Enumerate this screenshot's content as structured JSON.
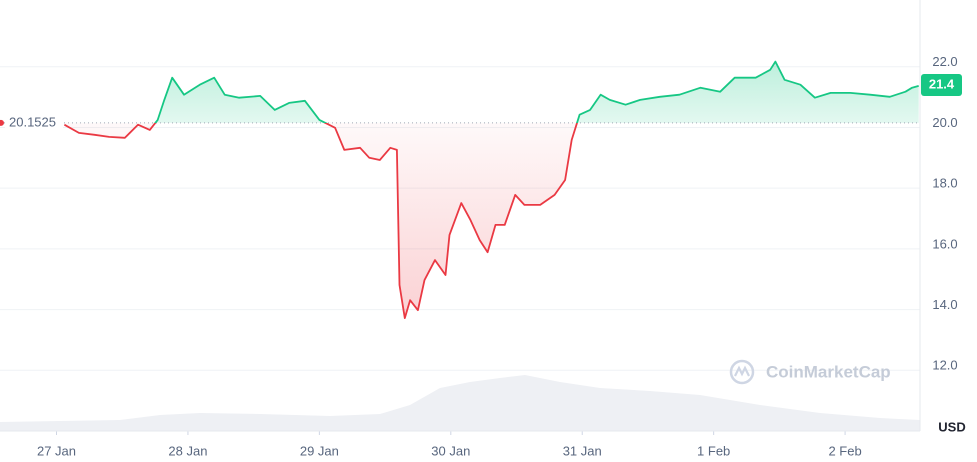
{
  "chart_data": {
    "type": "line",
    "baseline": 20.1525,
    "current_price": 21.4,
    "unit": "USD",
    "watermark": "CoinMarketCap",
    "xlim": [
      -0.43,
      6.57
    ],
    "ylim": [
      10,
      24.2
    ],
    "xticks": [
      {
        "value": 0,
        "label": "27 Jan"
      },
      {
        "value": 1,
        "label": "28 Jan"
      },
      {
        "value": 2,
        "label": "29 Jan"
      },
      {
        "value": 3,
        "label": "30 Jan"
      },
      {
        "value": 4,
        "label": "31 Jan"
      },
      {
        "value": 5,
        "label": "1 Feb"
      },
      {
        "value": 6,
        "label": "2 Feb"
      }
    ],
    "yticks": [
      {
        "value": 12,
        "label": "12.0"
      },
      {
        "value": 14,
        "label": "14.0"
      },
      {
        "value": 16,
        "label": "16.0"
      },
      {
        "value": 18,
        "label": "18.0"
      },
      {
        "value": 20,
        "label": "20.0"
      },
      {
        "value": 22,
        "label": "22.0"
      }
    ],
    "grid": true,
    "up_color": "#16c784",
    "down_color": "#ea3943",
    "x": [
      0.06,
      0.17,
      0.29,
      0.4,
      0.52,
      0.62,
      0.71,
      0.77,
      0.82,
      0.88,
      0.97,
      1.09,
      1.2,
      1.28,
      1.39,
      1.55,
      1.66,
      1.77,
      1.89,
      2.0,
      2.12,
      2.19,
      2.31,
      2.38,
      2.46,
      2.54,
      2.59,
      2.61,
      2.65,
      2.69,
      2.75,
      2.8,
      2.88,
      2.96,
      2.99,
      3.08,
      3.15,
      3.22,
      3.28,
      3.34,
      3.41,
      3.49,
      3.56,
      3.68,
      3.79,
      3.87,
      3.92,
      3.98,
      4.06,
      4.14,
      4.21,
      4.33,
      4.44,
      4.59,
      4.74,
      4.9,
      5.05,
      5.16,
      5.32,
      5.43,
      5.47,
      5.54,
      5.66,
      5.77,
      5.89,
      6.04,
      6.19,
      6.34,
      6.46,
      6.51,
      6.56
    ],
    "values": [
      20.09,
      19.82,
      19.76,
      19.69,
      19.66,
      20.09,
      19.92,
      20.25,
      20.91,
      21.64,
      21.08,
      21.41,
      21.64,
      21.08,
      20.98,
      21.04,
      20.58,
      20.81,
      20.88,
      20.25,
      19.99,
      19.26,
      19.33,
      19.0,
      18.93,
      19.33,
      19.26,
      14.81,
      13.72,
      14.31,
      13.98,
      14.97,
      15.63,
      15.14,
      16.46,
      17.51,
      16.95,
      16.29,
      15.89,
      16.79,
      16.79,
      17.78,
      17.45,
      17.45,
      17.78,
      18.27,
      19.59,
      20.42,
      20.58,
      21.08,
      20.91,
      20.75,
      20.91,
      21.01,
      21.08,
      21.31,
      21.18,
      21.64,
      21.64,
      21.9,
      22.17,
      21.57,
      21.41,
      20.98,
      21.14,
      21.14,
      21.08,
      21.01,
      21.18,
      21.31,
      21.37
    ]
  }
}
